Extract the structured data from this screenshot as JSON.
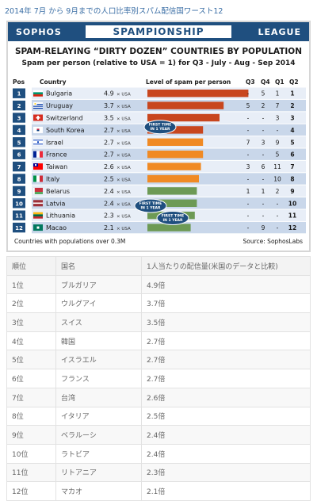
{
  "page": {
    "heading": "2014年 7月 から 9月までの人口比率別スパム配信国ワースト12"
  },
  "banner": {
    "left": "SOPHOS",
    "center": "SPAMPIONSHIP",
    "right": "LEAGUE"
  },
  "colors": {
    "banner_bg": "#1f4f7f",
    "row_bg_light": "#e8eef7",
    "row_bg_dark": "#c9d7ea",
    "pos_box": "#1f4f7f",
    "badge": "#1f4f7f",
    "bar_red": "#c8461e",
    "bar_orange": "#f08a24",
    "bar_green": "#6d9a55"
  },
  "chart_data": {
    "type": "bar",
    "title": "SPAM-RELAYING “DIRTY DOZEN” COUNTRIES BY POPULATION",
    "subtitle": "Spam per person (relative to USA = 1) for Q3 - July - Aug - Sep 2014",
    "columns": {
      "pos": "Pos",
      "country": "Country",
      "level": "Level of spam per person",
      "q3": "Q3",
      "q4": "Q4",
      "q1": "Q1",
      "q2": "Q2"
    },
    "unit_label": "× USA",
    "xlim": [
      0,
      5
    ],
    "badge_text": [
      "FIRST TIME",
      "IN 1 YEAR"
    ],
    "rows": [
      {
        "pos": "1",
        "country": "Bulgaria",
        "value": 4.9,
        "value_label": "4.9",
        "q3": "-",
        "q4": "5",
        "q1": "1",
        "q2": "1",
        "bar_color": "red",
        "flag": "bulgaria-flag-icon",
        "badge": false
      },
      {
        "pos": "2",
        "country": "Uruguay",
        "value": 3.7,
        "value_label": "3.7",
        "q3": "5",
        "q4": "2",
        "q1": "7",
        "q2": "2",
        "bar_color": "red",
        "flag": "uruguay-flag-icon",
        "badge": false
      },
      {
        "pos": "3",
        "country": "Switzerland",
        "value": 3.5,
        "value_label": "3.5",
        "q3": "-",
        "q4": "-",
        "q1": "3",
        "q2": "3",
        "bar_color": "red",
        "flag": "switzerland-flag-icon",
        "badge": false
      },
      {
        "pos": "4",
        "country": "South Korea",
        "value": 2.7,
        "value_label": "2.7",
        "q3": "-",
        "q4": "-",
        "q1": "-",
        "q2": "4",
        "bar_color": "red",
        "flag": "south-korea-flag-icon",
        "badge": true
      },
      {
        "pos": "5",
        "country": "Israel",
        "value": 2.7,
        "value_label": "2.7",
        "q3": "7",
        "q4": "3",
        "q1": "9",
        "q2": "5",
        "bar_color": "orange",
        "flag": "israel-flag-icon",
        "badge": false
      },
      {
        "pos": "6",
        "country": "France",
        "value": 2.7,
        "value_label": "2.7",
        "q3": "-",
        "q4": "-",
        "q1": "5",
        "q2": "6",
        "bar_color": "orange",
        "flag": "france-flag-icon",
        "badge": false
      },
      {
        "pos": "7",
        "country": "Taiwan",
        "value": 2.6,
        "value_label": "2.6",
        "q3": "3",
        "q4": "6",
        "q1": "11",
        "q2": "7",
        "bar_color": "orange",
        "flag": "taiwan-flag-icon",
        "badge": false
      },
      {
        "pos": "8",
        "country": "Italy",
        "value": 2.5,
        "value_label": "2.5",
        "q3": "-",
        "q4": "-",
        "q1": "10",
        "q2": "8",
        "bar_color": "orange",
        "flag": "italy-flag-icon",
        "badge": false
      },
      {
        "pos": "9",
        "country": "Belarus",
        "value": 2.4,
        "value_label": "2.4",
        "q3": "1",
        "q4": "1",
        "q1": "2",
        "q2": "9",
        "bar_color": "green",
        "flag": "belarus-flag-icon",
        "badge": false
      },
      {
        "pos": "10",
        "country": "Latvia",
        "value": 2.4,
        "value_label": "2.4",
        "q3": "-",
        "q4": "-",
        "q1": "-",
        "q2": "10",
        "bar_color": "green",
        "flag": "latvia-flag-icon",
        "badge": true
      },
      {
        "pos": "11",
        "country": "Lithuania",
        "value": 2.3,
        "value_label": "2.3",
        "q3": "-",
        "q4": "-",
        "q1": "-",
        "q2": "11",
        "bar_color": "green",
        "flag": "lithuania-flag-icon",
        "badge": true
      },
      {
        "pos": "12",
        "country": "Macao",
        "value": 2.1,
        "value_label": "2.1",
        "q3": "-",
        "q4": "9",
        "q1": "-",
        "q2": "12",
        "bar_color": "green",
        "flag": "macao-flag-icon",
        "badge": false
      }
    ],
    "footnote": "Countries with populations over 0.3M",
    "source": "Source: SophosLabs"
  },
  "table": {
    "headers": [
      "順位",
      "国名",
      "1人当たりの配信量(米国のデータと比較)"
    ],
    "rows": [
      [
        "1位",
        "ブルガリア",
        "4.9倍"
      ],
      [
        "2位",
        "ウルグアイ",
        "3.7倍"
      ],
      [
        "3位",
        "スイス",
        "3.5倍"
      ],
      [
        "4位",
        "韓国",
        "2.7倍"
      ],
      [
        "5位",
        "イスラエル",
        "2.7倍"
      ],
      [
        "6位",
        "フランス",
        "2.7倍"
      ],
      [
        "7位",
        "台湾",
        "2.6倍"
      ],
      [
        "8位",
        "イタリア",
        "2.5倍"
      ],
      [
        "9位",
        "ベラルーシ",
        "2.4倍"
      ],
      [
        "10位",
        "ラトビア",
        "2.4倍"
      ],
      [
        "11位",
        "リトアニア",
        "2.3倍"
      ],
      [
        "12位",
        "マカオ",
        "2.1倍"
      ]
    ]
  }
}
